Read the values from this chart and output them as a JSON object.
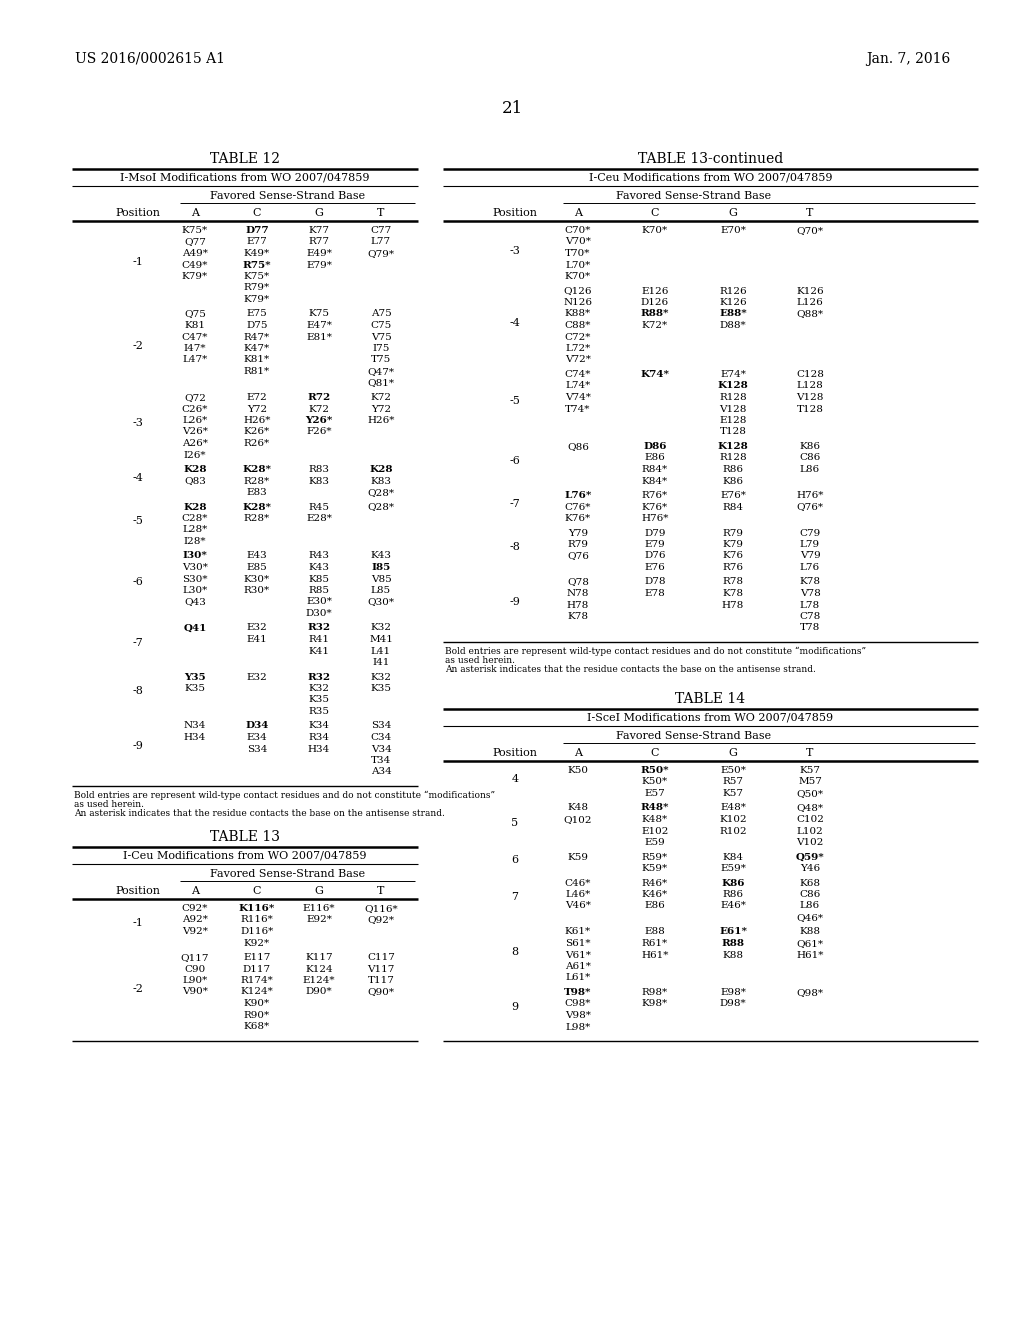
{
  "page_header_left": "US 2016/0002615 A1",
  "page_header_right": "Jan. 7, 2016",
  "page_number": "21",
  "background_color": "#ffffff",
  "table12": {
    "title": "TABLE 12",
    "subtitle": "I-MsoI Modifications from WO 2007/047859",
    "header2": "Favored Sense-Strand Base",
    "rows": [
      {
        "position": "-1",
        "A": [
          "K75*",
          "Q77",
          "A49*",
          "C49*",
          "K79*"
        ],
        "C": [
          "D77",
          "E77",
          "K49*",
          "R75*",
          "K75*",
          "R79*",
          "K79*"
        ],
        "G": [
          "K77",
          "R77",
          "E49*",
          "E79*"
        ],
        "T": [
          "C77",
          "L77",
          "Q79*"
        ],
        "bold_A": [],
        "bold_C": [
          "D77",
          "R75*"
        ],
        "bold_G": [],
        "bold_T": []
      },
      {
        "position": "-2",
        "A": [
          "Q75",
          "K81",
          "C47*",
          "I47*",
          "L47*"
        ],
        "C": [
          "E75",
          "D75",
          "R47*",
          "K47*",
          "K81*",
          "R81*"
        ],
        "G": [
          "K75",
          "E47*",
          "E81*"
        ],
        "T": [
          "A75",
          "C75",
          "V75",
          "I75",
          "T75",
          "Q47*",
          "Q81*"
        ],
        "bold_A": [],
        "bold_C": [],
        "bold_G": [],
        "bold_T": []
      },
      {
        "position": "-3",
        "A": [
          "Q72",
          "C26*",
          "L26*",
          "V26*",
          "A26*",
          "I26*"
        ],
        "C": [
          "E72",
          "Y72",
          "H26*",
          "K26*",
          "R26*"
        ],
        "G": [
          "R72",
          "K72",
          "Y26*",
          "F26*"
        ],
        "T": [
          "K72",
          "Y72",
          "H26*"
        ],
        "bold_A": [],
        "bold_C": [],
        "bold_G": [
          "R72",
          "Y26*"
        ],
        "bold_T": []
      },
      {
        "position": "-4",
        "A": [
          "K28",
          "Q83"
        ],
        "C": [
          "K28*",
          "R28*",
          "E83"
        ],
        "G": [
          "R83",
          "K83"
        ],
        "T": [
          "K28",
          "K83",
          "Q28*"
        ],
        "bold_A": [
          "K28"
        ],
        "bold_C": [
          "K28*"
        ],
        "bold_G": [],
        "bold_T": [
          "K28"
        ]
      },
      {
        "position": "-5",
        "A": [
          "K28",
          "C28*",
          "L28*",
          "I28*"
        ],
        "C": [
          "K28*",
          "R28*"
        ],
        "G": [
          "R45",
          "E28*"
        ],
        "T": [
          "Q28*"
        ],
        "bold_A": [
          "K28"
        ],
        "bold_C": [
          "K28*"
        ],
        "bold_G": [],
        "bold_T": []
      },
      {
        "position": "-6",
        "A": [
          "I30*",
          "V30*",
          "S30*",
          "L30*",
          "Q43"
        ],
        "C": [
          "E43",
          "E85",
          "K30*",
          "R30*"
        ],
        "G": [
          "R43",
          "K43",
          "K85",
          "R85",
          "E30*",
          "D30*"
        ],
        "T": [
          "K43",
          "I85",
          "V85",
          "L85",
          "Q30*"
        ],
        "bold_A": [
          "I30*"
        ],
        "bold_C": [],
        "bold_G": [],
        "bold_T": [
          "I85"
        ]
      },
      {
        "position": "-7",
        "A": [
          "Q41"
        ],
        "C": [
          "E32",
          "E41"
        ],
        "G": [
          "R32",
          "R41",
          "K41"
        ],
        "T": [
          "K32",
          "M41",
          "L41",
          "I41"
        ],
        "bold_A": [
          "Q41"
        ],
        "bold_C": [],
        "bold_G": [
          "R32"
        ],
        "bold_T": []
      },
      {
        "position": "-8",
        "A": [
          "Y35",
          "K35"
        ],
        "C": [
          "E32"
        ],
        "G": [
          "R32",
          "K32",
          "K35",
          "R35"
        ],
        "T": [
          "K32",
          "K35"
        ],
        "bold_A": [
          "Y35"
        ],
        "bold_C": [],
        "bold_G": [
          "R32"
        ],
        "bold_T": []
      },
      {
        "position": "-9",
        "A": [
          "N34",
          "H34"
        ],
        "C": [
          "D34",
          "E34",
          "S34"
        ],
        "G": [
          "K34",
          "R34",
          "H34"
        ],
        "T": [
          "S34",
          "C34",
          "V34",
          "T34",
          "A34"
        ],
        "bold_A": [],
        "bold_C": [
          "D34"
        ],
        "bold_G": [],
        "bold_T": []
      }
    ],
    "footnote": [
      "Bold entries are represent wild-type contact residues and do not constitute “modifications”",
      "as used herein.",
      "An asterisk indicates that the residue contacts the base on the antisense strand."
    ]
  },
  "table13_cont": {
    "title": "TABLE 13-continued",
    "subtitle": "I-Ceu Modifications from WO 2007/047859",
    "header2": "Favored Sense-Strand Base",
    "rows": [
      {
        "position": "-3",
        "A": [
          "C70*",
          "V70*",
          "T70*",
          "L70*",
          "K70*"
        ],
        "C": [
          "K70*"
        ],
        "G": [
          "E70*"
        ],
        "T": [
          "Q70*"
        ],
        "bold_A": [],
        "bold_C": [],
        "bold_G": [],
        "bold_T": []
      },
      {
        "position": "-4",
        "A": [
          "Q126",
          "N126",
          "K88*",
          "C88*",
          "C72*",
          "L72*",
          "V72*"
        ],
        "C": [
          "E126",
          "D126",
          "R88*",
          "K72*"
        ],
        "G": [
          "R126",
          "K126",
          "E88*",
          "D88*"
        ],
        "T": [
          "K126",
          "L126",
          "Q88*"
        ],
        "bold_A": [],
        "bold_C": [
          "R88*"
        ],
        "bold_G": [
          "E88*"
        ],
        "bold_T": []
      },
      {
        "position": "-5",
        "A": [
          "C74*",
          "L74*",
          "V74*",
          "T74*"
        ],
        "C": [
          "K74*"
        ],
        "G": [
          "E74*",
          "K128",
          "R128",
          "V128",
          "E128",
          "T128"
        ],
        "T": [
          "C128",
          "L128",
          "V128",
          "T128"
        ],
        "bold_A": [],
        "bold_C": [
          "K74*"
        ],
        "bold_G": [
          "K128"
        ],
        "bold_T": []
      },
      {
        "position": "-6",
        "A": [
          "Q86"
        ],
        "C": [
          "D86",
          "E86",
          "R84*",
          "K84*"
        ],
        "G": [
          "K128",
          "R128",
          "R86",
          "K86"
        ],
        "T": [
          "K86",
          "C86",
          "L86"
        ],
        "bold_A": [],
        "bold_C": [
          "D86"
        ],
        "bold_G": [
          "K128"
        ],
        "bold_T": []
      },
      {
        "position": "-7",
        "A": [
          "L76*",
          "C76*",
          "K76*"
        ],
        "C": [
          "R76*",
          "K76*",
          "H76*"
        ],
        "G": [
          "E76*",
          "R84"
        ],
        "T": [
          "H76*",
          "Q76*"
        ],
        "bold_A": [
          "L76*"
        ],
        "bold_C": [],
        "bold_G": [],
        "bold_T": []
      },
      {
        "position": "-8",
        "A": [
          "Y79",
          "R79",
          "Q76"
        ],
        "C": [
          "D79",
          "E79",
          "D76",
          "E76"
        ],
        "G": [
          "R79",
          "K79",
          "K76",
          "R76"
        ],
        "T": [
          "C79",
          "L79",
          "V79",
          "L76"
        ],
        "bold_A": [],
        "bold_C": [],
        "bold_G": [],
        "bold_T": []
      },
      {
        "position": "-9",
        "A": [
          "Q78",
          "N78",
          "H78",
          "K78"
        ],
        "C": [
          "D78",
          "E78"
        ],
        "G": [
          "R78",
          "K78",
          "H78"
        ],
        "T": [
          "K78",
          "V78",
          "L78",
          "C78",
          "T78"
        ],
        "bold_A": [],
        "bold_C": [],
        "bold_G": [],
        "bold_T": []
      }
    ],
    "footnote": [
      "Bold entries are represent wild-type contact residues and do not constitute “modifications”",
      "as used herein.",
      "An asterisk indicates that the residue contacts the base on the antisense strand."
    ]
  },
  "table13": {
    "title": "TABLE 13",
    "subtitle": "I-Ceu Modifications from WO 2007/047859",
    "header2": "Favored Sense-Strand Base",
    "rows": [
      {
        "position": "-1",
        "A": [
          "C92*",
          "A92*",
          "V92*"
        ],
        "C": [
          "K116*",
          "R116*",
          "D116*",
          "K92*"
        ],
        "G": [
          "E116*",
          "E92*"
        ],
        "T": [
          "Q116*",
          "Q92*"
        ],
        "bold_A": [],
        "bold_C": [
          "K116*"
        ],
        "bold_G": [],
        "bold_T": []
      },
      {
        "position": "-2",
        "A": [
          "Q117",
          "C90",
          "L90*",
          "V90*"
        ],
        "C": [
          "E117",
          "D117",
          "R174*",
          "K124*",
          "K90*",
          "R90*",
          "K68*"
        ],
        "G": [
          "K117",
          "K124",
          "E124*",
          "D90*"
        ],
        "T": [
          "C117",
          "V117",
          "T117",
          "Q90*"
        ],
        "bold_A": [],
        "bold_C": [],
        "bold_G": [],
        "bold_T": []
      }
    ]
  },
  "table14": {
    "title": "TABLE 14",
    "subtitle": "I-SceI Modifications from WO 2007/047859",
    "header2": "Favored Sense-Strand Base",
    "rows": [
      {
        "position": "4",
        "A": [
          "K50"
        ],
        "C": [
          "R50*",
          "K50*",
          "E57"
        ],
        "G": [
          "E50*",
          "R57",
          "K57"
        ],
        "T": [
          "K57",
          "M57",
          "Q50*"
        ],
        "bold_A": [],
        "bold_C": [
          "R50*"
        ],
        "bold_G": [],
        "bold_T": []
      },
      {
        "position": "5",
        "A": [
          "K48",
          "Q102"
        ],
        "C": [
          "R48*",
          "K48*",
          "E102",
          "E59"
        ],
        "G": [
          "E48*",
          "K102",
          "R102"
        ],
        "T": [
          "Q48*",
          "C102",
          "L102",
          "V102"
        ],
        "bold_A": [],
        "bold_C": [
          "R48*"
        ],
        "bold_G": [],
        "bold_T": []
      },
      {
        "position": "6",
        "A": [
          "K59"
        ],
        "C": [
          "R59*",
          "K59*"
        ],
        "G": [
          "K84",
          "E59*"
        ],
        "T": [
          "Q59*",
          "Y46"
        ],
        "bold_A": [],
        "bold_C": [],
        "bold_G": [],
        "bold_T": [
          "Q59*"
        ]
      },
      {
        "position": "7",
        "A": [
          "C46*",
          "L46*",
          "V46*"
        ],
        "C": [
          "R46*",
          "K46*",
          "E86"
        ],
        "G": [
          "K86",
          "R86",
          "E46*"
        ],
        "T": [
          "K68",
          "C86",
          "L86",
          "Q46*"
        ],
        "bold_A": [],
        "bold_C": [],
        "bold_G": [
          "K86"
        ],
        "bold_T": []
      },
      {
        "position": "8",
        "A": [
          "K61*",
          "S61*",
          "V61*",
          "A61*",
          "L61*"
        ],
        "C": [
          "E88",
          "R61*",
          "H61*"
        ],
        "G": [
          "E61*",
          "R88",
          "K88"
        ],
        "T": [
          "K88",
          "Q61*",
          "H61*"
        ],
        "bold_A": [],
        "bold_C": [],
        "bold_G": [
          "E61*",
          "R88"
        ],
        "bold_T": []
      },
      {
        "position": "9",
        "A": [
          "T98*",
          "C98*",
          "V98*",
          "L98*"
        ],
        "C": [
          "R98*",
          "K98*"
        ],
        "G": [
          "E98*",
          "D98*"
        ],
        "T": [
          "Q98*"
        ],
        "bold_A": [
          "T98*"
        ],
        "bold_C": [],
        "bold_G": [],
        "bold_T": []
      }
    ]
  }
}
